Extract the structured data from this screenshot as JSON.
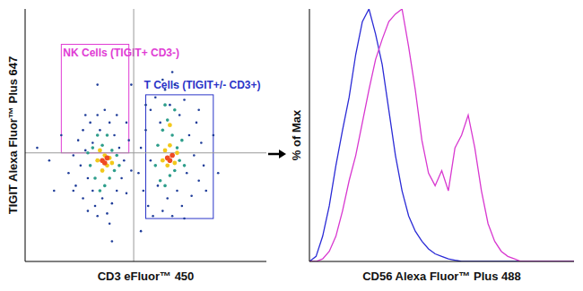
{
  "chart_data": [
    {
      "type": "scatter",
      "x_label": "CD3 eFluor™ 450",
      "y_label": "TIGIT Alexa Fluor™ Plus 647",
      "xlim": [
        0,
        100
      ],
      "ylim": [
        0,
        100
      ],
      "tick_labels": false,
      "quadrant": {
        "x": 45,
        "y": 43
      },
      "gates": [
        {
          "label": "NK Cells (TIGIT+ CD3-)",
          "color": "#e03cd4",
          "x": [
            15,
            43
          ],
          "y": [
            43,
            86
          ]
        },
        {
          "label": "T Cells (TIGIT+/- CD3+)",
          "color": "#2a35c8",
          "x": [
            50,
            78
          ],
          "y": [
            17,
            66
          ]
        }
      ],
      "series": [
        {
          "color": "#1f3d99",
          "points": [
            [
              18,
              35
            ],
            [
              20,
              42
            ],
            [
              21,
              30
            ],
            [
              22,
              48
            ],
            [
              23,
              38
            ],
            [
              24,
              25
            ],
            [
              24,
              52
            ],
            [
              25,
              44
            ],
            [
              26,
              33
            ],
            [
              26,
              20
            ],
            [
              27,
              55
            ],
            [
              28,
              28
            ],
            [
              28,
              47
            ],
            [
              29,
              22
            ],
            [
              30,
              58
            ],
            [
              30,
              18
            ],
            [
              31,
              52
            ],
            [
              32,
              25
            ],
            [
              33,
              60
            ],
            [
              34,
              19
            ],
            [
              35,
              55
            ],
            [
              36,
              23
            ],
            [
              37,
              50
            ],
            [
              38,
              28
            ],
            [
              39,
              45
            ],
            [
              40,
              33
            ],
            [
              41,
              40
            ],
            [
              42,
              27
            ],
            [
              43,
              48
            ],
            [
              44,
              36
            ],
            [
              38,
              58
            ],
            [
              25,
              58
            ],
            [
              20,
              28
            ],
            [
              35,
              15
            ],
            [
              42,
              55
            ],
            [
              47,
              35
            ],
            [
              48,
              45
            ],
            [
              49,
              28
            ],
            [
              50,
              52
            ],
            [
              51,
              22
            ],
            [
              52,
              40
            ],
            [
              52,
              60
            ],
            [
              53,
              18
            ],
            [
              54,
              65
            ],
            [
              55,
              30
            ],
            [
              56,
              55
            ],
            [
              57,
              20
            ],
            [
              58,
              68
            ],
            [
              59,
              25
            ],
            [
              60,
              62
            ],
            [
              61,
              18
            ],
            [
              62,
              70
            ],
            [
              63,
              28
            ],
            [
              64,
              58
            ],
            [
              65,
              22
            ],
            [
              66,
              64
            ],
            [
              67,
              35
            ],
            [
              68,
              50
            ],
            [
              69,
              26
            ],
            [
              70,
              42
            ],
            [
              71,
              55
            ],
            [
              72,
              32
            ],
            [
              73,
              47
            ],
            [
              74,
              38
            ],
            [
              75,
              28
            ],
            [
              57,
              72
            ],
            [
              61,
              75
            ],
            [
              50,
              62
            ],
            [
              66,
              17
            ],
            [
              72,
              60
            ],
            [
              10,
              40
            ],
            [
              12,
              28
            ],
            [
              15,
              50
            ],
            [
              80,
              35
            ],
            [
              78,
              50
            ],
            [
              44,
              70
            ],
            [
              30,
              70
            ],
            [
              5,
              45
            ],
            [
              48,
              12
            ],
            [
              36,
              8
            ]
          ]
        },
        {
          "color": "#2e9e8b",
          "points": [
            [
              27,
              38
            ],
            [
              28,
              45
            ],
            [
              29,
              33
            ],
            [
              30,
              50
            ],
            [
              31,
              28
            ],
            [
              32,
              46
            ],
            [
              33,
              30
            ],
            [
              34,
              50
            ],
            [
              35,
              33
            ],
            [
              36,
              44
            ],
            [
              37,
              36
            ],
            [
              38,
              42
            ],
            [
              26,
              43
            ],
            [
              39,
              38
            ],
            [
              54,
              38
            ],
            [
              55,
              46
            ],
            [
              56,
              32
            ],
            [
              57,
              52
            ],
            [
              58,
              30
            ],
            [
              59,
              56
            ],
            [
              60,
              34
            ],
            [
              61,
              50
            ],
            [
              62,
              36
            ],
            [
              63,
              45
            ],
            [
              64,
              40
            ],
            [
              65,
              48
            ],
            [
              58,
              62
            ],
            [
              62,
              60
            ],
            [
              66,
              38
            ]
          ]
        },
        {
          "color": "#f2c81b",
          "points": [
            [
              30,
              40
            ],
            [
              31,
              44
            ],
            [
              32,
              36
            ],
            [
              33,
              42
            ],
            [
              34,
              38
            ],
            [
              35,
              41
            ],
            [
              36,
              39
            ],
            [
              57,
              40
            ],
            [
              58,
              44
            ],
            [
              59,
              38
            ],
            [
              60,
              46
            ],
            [
              61,
              42
            ],
            [
              62,
              39
            ],
            [
              63,
              43
            ],
            [
              60,
              54
            ]
          ]
        },
        {
          "color": "#ef4a23",
          "points": [
            [
              32,
              40
            ],
            [
              33,
              39
            ],
            [
              34,
              41
            ],
            [
              59,
              41
            ],
            [
              60,
              40
            ],
            [
              61,
              42
            ]
          ]
        }
      ]
    },
    {
      "type": "line",
      "x_label": "CD56 Alexa Fluor™ Plus 488",
      "y_label": "% of Max",
      "xlim": [
        0,
        100
      ],
      "ylim": [
        0,
        100
      ],
      "tick_labels": false,
      "x": [
        0,
        2.5,
        5,
        7.5,
        10,
        12.5,
        15,
        17.5,
        20,
        22.5,
        25,
        27.5,
        30,
        32.5,
        35,
        37.5,
        40,
        42.5,
        45,
        47.5,
        50,
        52.5,
        55,
        57.5,
        60,
        62.5,
        65,
        67.5,
        70,
        72.5,
        75,
        77.5,
        80,
        82.5,
        85,
        87.5,
        90,
        92.5,
        95,
        97.5,
        100
      ],
      "series": [
        {
          "color": "#2b2bd6",
          "values": [
            0,
            2,
            10,
            22,
            38,
            52,
            65,
            82,
            95,
            100,
            90,
            78,
            60,
            42,
            28,
            18,
            12,
            8,
            5,
            3,
            2,
            1,
            0.5,
            0,
            0,
            0,
            0,
            0,
            0,
            0,
            0,
            0,
            0,
            0,
            0,
            0,
            0,
            0,
            0,
            0,
            0
          ]
        },
        {
          "color": "#d838d0",
          "values": [
            0,
            0,
            1,
            4,
            10,
            20,
            32,
            42,
            55,
            68,
            80,
            88,
            95,
            98,
            100,
            85,
            68,
            48,
            35,
            30,
            36,
            28,
            45,
            50,
            58,
            45,
            28,
            15,
            8,
            4,
            2,
            1,
            0,
            0,
            0,
            0,
            0,
            0,
            0,
            0,
            0
          ]
        }
      ]
    }
  ]
}
